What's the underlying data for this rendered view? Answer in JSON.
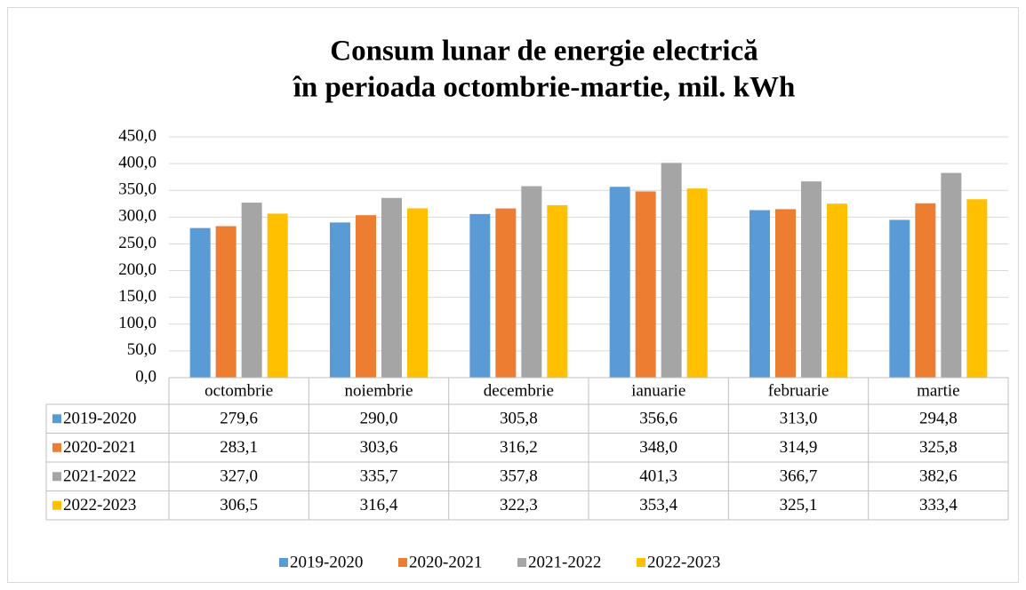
{
  "chart_data": {
    "type": "bar",
    "title": [
      "Consum lunar de energie electrică",
      "în perioada octombrie-martie, mil. kWh"
    ],
    "categories": [
      "octombrie",
      "noiembrie",
      "decembrie",
      "ianuarie",
      "februarie",
      "martie"
    ],
    "series": [
      {
        "name": "2019-2020",
        "color": "#5b9bd5",
        "values": [
          279.6,
          290.0,
          305.8,
          356.6,
          313.0,
          294.8
        ],
        "value_labels": [
          "279,6",
          "290,0",
          "305,8",
          "356,6",
          "313,0",
          "294,8"
        ]
      },
      {
        "name": "2020-2021",
        "color": "#ed7d31",
        "values": [
          283.1,
          303.6,
          316.2,
          348.0,
          314.9,
          325.8
        ],
        "value_labels": [
          "283,1",
          "303,6",
          "316,2",
          "348,0",
          "314,9",
          "325,8"
        ]
      },
      {
        "name": "2021-2022",
        "color": "#a5a5a5",
        "values": [
          327.0,
          335.7,
          357.8,
          401.3,
          366.7,
          382.6
        ],
        "value_labels": [
          "327,0",
          "335,7",
          "357,8",
          "401,3",
          "366,7",
          "382,6"
        ]
      },
      {
        "name": "2022-2023",
        "color": "#ffc000",
        "values": [
          306.5,
          316.4,
          322.3,
          353.4,
          325.1,
          333.4
        ],
        "value_labels": [
          "306,5",
          "316,4",
          "322,3",
          "353,4",
          "325,1",
          "333,4"
        ]
      }
    ],
    "ylim": [
      0,
      450
    ],
    "yticks": [
      {
        "value": 0,
        "label": "0,0"
      },
      {
        "value": 50,
        "label": "50,0"
      },
      {
        "value": 100,
        "label": "100,0"
      },
      {
        "value": 150,
        "label": "150,0"
      },
      {
        "value": 200,
        "label": "200,0"
      },
      {
        "value": 250,
        "label": "250,0"
      },
      {
        "value": 300,
        "label": "300,0"
      },
      {
        "value": 350,
        "label": "350,0"
      },
      {
        "value": 400,
        "label": "400,0"
      },
      {
        "value": 450,
        "label": "450,0"
      }
    ],
    "grid": true,
    "legend": "bottom"
  }
}
